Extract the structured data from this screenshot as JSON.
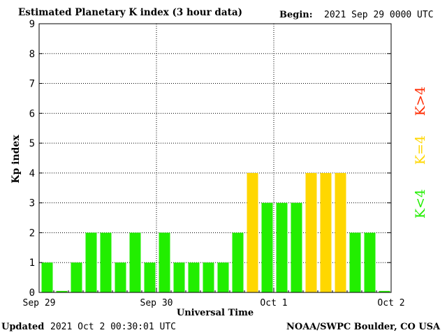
{
  "header": {
    "title": "Estimated Planetary K index (3 hour data)",
    "begin_label": "Begin:",
    "begin_value": "2021 Sep 29 0000 UTC"
  },
  "footer": {
    "updated_label": "Updated",
    "updated_value": "2021 Oct  2 00:30:01 UTC",
    "source": "NOAA/SWPC Boulder, CO USA"
  },
  "legend": [
    {
      "label": "K>4",
      "color": "#ff2a00"
    },
    {
      "label": "K=4",
      "color": "#ffd700"
    },
    {
      "label": "K<4",
      "color": "#22ee00"
    }
  ],
  "chart_data": {
    "type": "bar",
    "title": "Estimated Planetary K index (3 hour data)",
    "xlabel": "Universal Time",
    "ylabel": "Kp index",
    "ylim": [
      0,
      9
    ],
    "yticks": [
      "0",
      "1",
      "2",
      "3",
      "4",
      "5",
      "6",
      "7",
      "8",
      "9"
    ],
    "xticks": [
      "Sep 29",
      "Sep 30",
      "Oct 1",
      "Oct 2"
    ],
    "grid": true,
    "values": [
      1,
      0.05,
      1,
      2,
      2,
      1,
      2,
      1,
      2,
      1,
      1,
      1,
      1,
      2,
      4,
      3,
      3,
      3,
      4,
      4,
      4,
      2,
      2,
      0.05
    ],
    "colors": {
      "below": "#22ee00",
      "equal": "#ffd700",
      "above": "#ff2a00"
    }
  }
}
